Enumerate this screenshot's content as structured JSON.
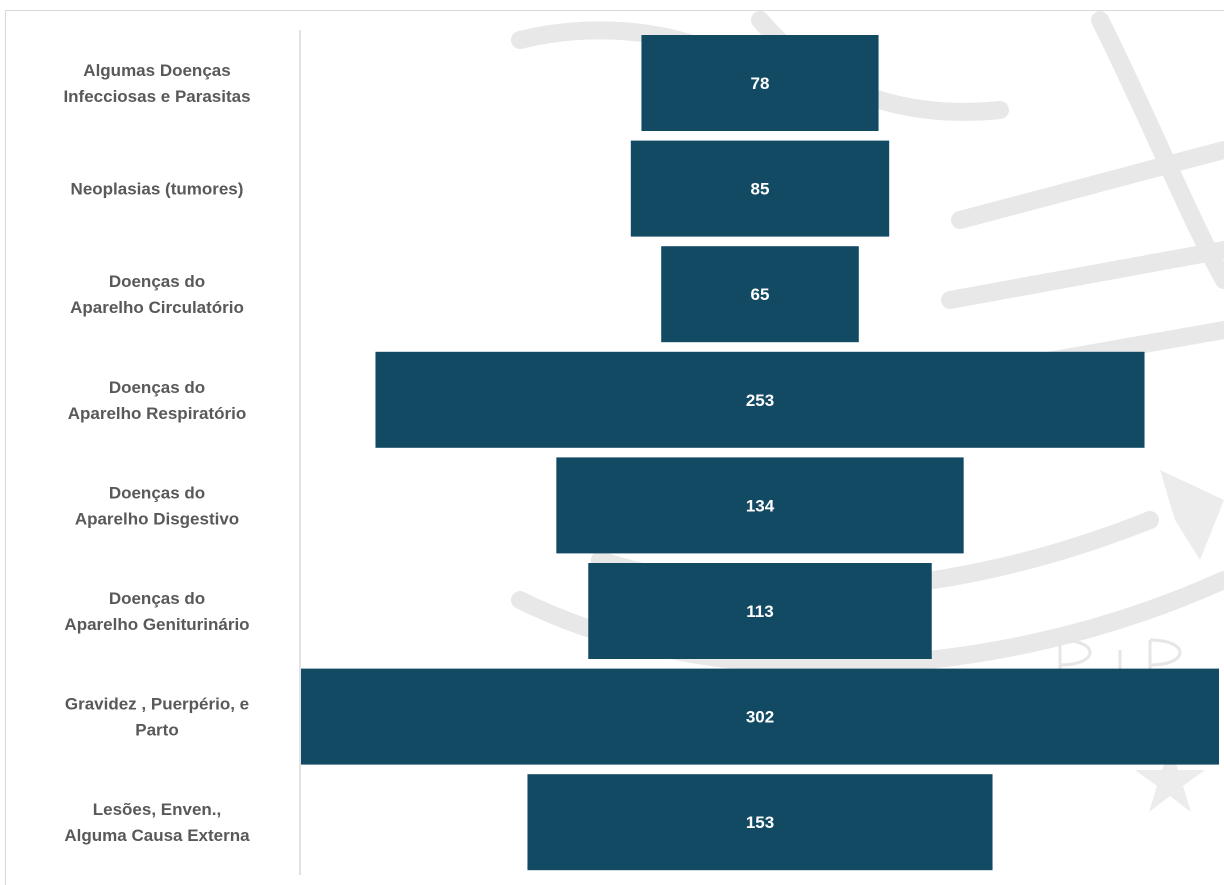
{
  "chart_data": {
    "type": "bar",
    "orientation": "horizontal-centered",
    "categories": [
      [
        "Algumas Doenças",
        "Infecciosas e Parasitas"
      ],
      [
        "Neoplasias (tumores)"
      ],
      [
        "Doenças do",
        "Aparelho Circulatório"
      ],
      [
        "Doenças do",
        "Aparelho Respiratório"
      ],
      [
        "Doenças do",
        "Aparelho Disgestivo"
      ],
      [
        "Doenças do",
        "Aparelho Geniturinário"
      ],
      [
        "Gravidez , Puerpério, e",
        "Parto"
      ],
      [
        "Lesões, Enven.,",
        "Alguma Causa Externa"
      ]
    ],
    "values": [
      78,
      85,
      65,
      253,
      134,
      113,
      302,
      153
    ],
    "xlim": [
      0,
      302
    ],
    "bar_color": "#124a64",
    "label_color": "#595959",
    "data_label_color": "#ffffff",
    "axis_color": "#d9d9d9",
    "grid": false,
    "legend": "none"
  }
}
